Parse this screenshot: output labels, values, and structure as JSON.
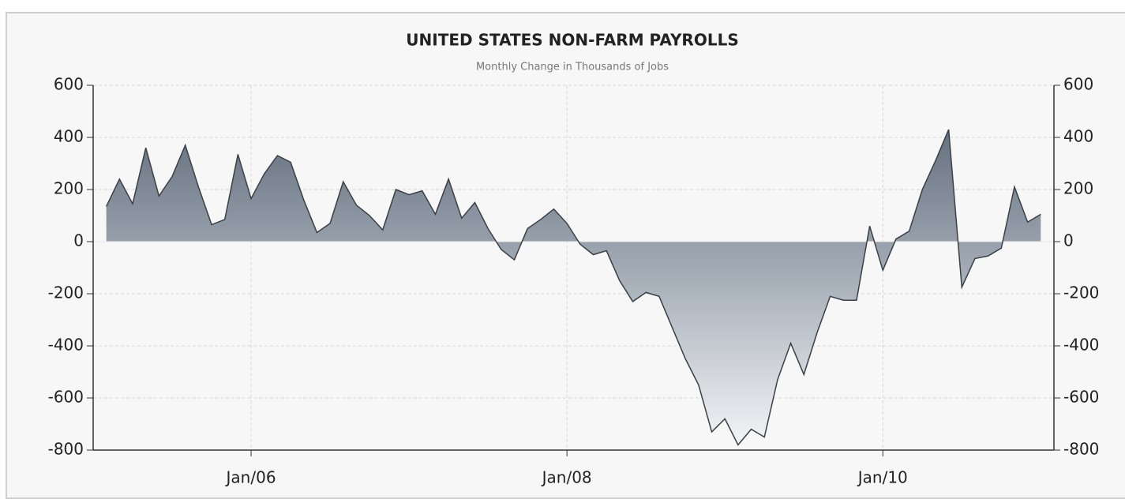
{
  "chart_data": {
    "type": "area",
    "title": "UNITED STATES NON-FARM PAYROLLS",
    "subtitle": "Monthly Change in Thousands of Jobs",
    "x": [
      "2005-02",
      "2005-03",
      "2005-04",
      "2005-05",
      "2005-06",
      "2005-07",
      "2005-08",
      "2005-09",
      "2005-10",
      "2005-11",
      "2005-12",
      "2006-01",
      "2006-02",
      "2006-03",
      "2006-04",
      "2006-05",
      "2006-06",
      "2006-07",
      "2006-08",
      "2006-09",
      "2006-10",
      "2006-11",
      "2006-12",
      "2007-01",
      "2007-02",
      "2007-03",
      "2007-04",
      "2007-05",
      "2007-06",
      "2007-07",
      "2007-08",
      "2007-09",
      "2007-10",
      "2007-11",
      "2007-12",
      "2008-01",
      "2008-02",
      "2008-03",
      "2008-04",
      "2008-05",
      "2008-06",
      "2008-07",
      "2008-08",
      "2008-09",
      "2008-10",
      "2008-11",
      "2008-12",
      "2009-01",
      "2009-02",
      "2009-03",
      "2009-04",
      "2009-05",
      "2009-06",
      "2009-07",
      "2009-08",
      "2009-09",
      "2009-10",
      "2009-11",
      "2009-12",
      "2010-01",
      "2010-02",
      "2010-03",
      "2010-04",
      "2010-05",
      "2010-06",
      "2010-07",
      "2010-08",
      "2010-09",
      "2010-10",
      "2010-11",
      "2010-12",
      "2011-01"
    ],
    "values": [
      135,
      240,
      145,
      360,
      175,
      250,
      370,
      210,
      65,
      85,
      335,
      165,
      260,
      330,
      305,
      160,
      35,
      70,
      230,
      140,
      100,
      45,
      200,
      180,
      195,
      105,
      240,
      90,
      150,
      50,
      -30,
      -70,
      50,
      85,
      125,
      70,
      -10,
      -50,
      -35,
      -150,
      -230,
      -195,
      -210,
      -330,
      -450,
      -550,
      -730,
      -680,
      -780,
      -720,
      -750,
      -530,
      -390,
      -510,
      -350,
      -210,
      -225,
      -225,
      60,
      -110,
      10,
      40,
      200,
      310,
      430,
      -175,
      -65,
      -55,
      -25,
      210,
      75,
      105
    ],
    "color": "#6b7886",
    "xlim": [
      "2005-01",
      "2011-02"
    ],
    "xticks": [
      {
        "value": "2006-01",
        "label": "Jan/06"
      },
      {
        "value": "2008-01",
        "label": "Jan/08"
      },
      {
        "value": "2010-01",
        "label": "Jan/10"
      }
    ],
    "ylim": [
      -800,
      600
    ],
    "yticks": [
      -800,
      -600,
      -400,
      -200,
      0,
      200,
      400,
      600
    ],
    "grid": true
  }
}
